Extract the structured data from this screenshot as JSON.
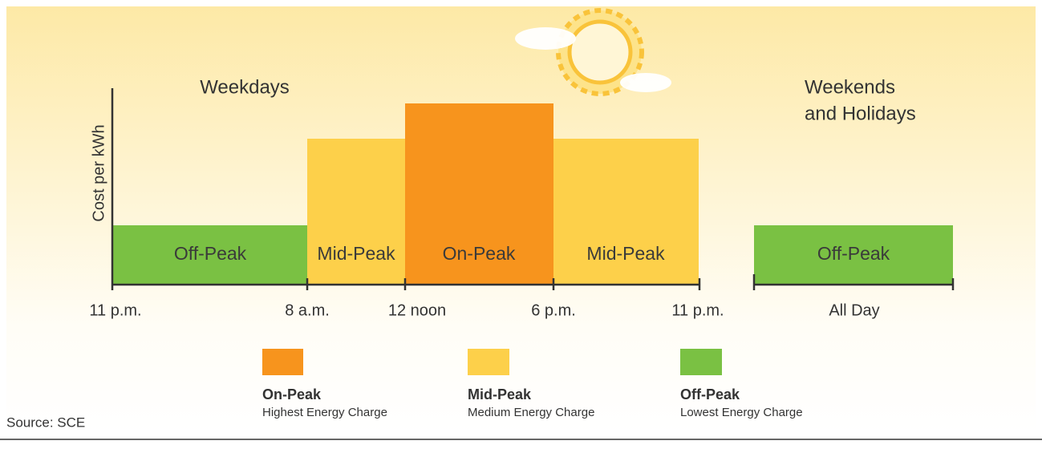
{
  "title_left": "Weekdays",
  "title_right": [
    "Weekends",
    "and Holidays"
  ],
  "y_axis_label": "Cost per kWh",
  "segments": [
    "Off-Peak",
    "Mid-Peak",
    "On-Peak",
    "Mid-Peak",
    "Off-Peak"
  ],
  "time_labels": [
    "11 p.m.",
    "8 a.m.",
    "12 noon",
    "6 p.m.",
    "11 p.m.",
    "All Day"
  ],
  "legend": [
    {
      "name": "On-Peak",
      "description": "Highest Energy Charge"
    },
    {
      "name": "Mid-Peak",
      "description": "Medium Energy Charge"
    },
    {
      "name": "Off-Peak",
      "description": "Lowest Energy Charge"
    }
  ],
  "source": "Source: SCE"
}
